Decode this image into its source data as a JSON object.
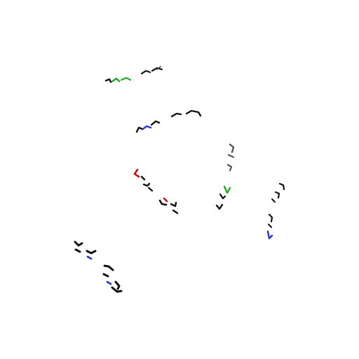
{
  "scene": {
    "background": "#ffffff",
    "ink_color": "#111111",
    "accent_colors": {
      "red": "#cc1111",
      "green": "#22aa22",
      "blue": "#2233cc",
      "gray": "#666666"
    },
    "groups": [
      {
        "name": "glyph-cluster-top",
        "accent": "green"
      },
      {
        "name": "glyph-cluster-upper-middle",
        "accent": "blue"
      },
      {
        "name": "glyph-cluster-center-right",
        "accent": "green"
      },
      {
        "name": "glyph-cluster-right",
        "accent": "blue"
      },
      {
        "name": "glyph-cluster-center-left",
        "accent": "red"
      },
      {
        "name": "glyph-cluster-bottom-left",
        "accent": "blue"
      }
    ]
  }
}
